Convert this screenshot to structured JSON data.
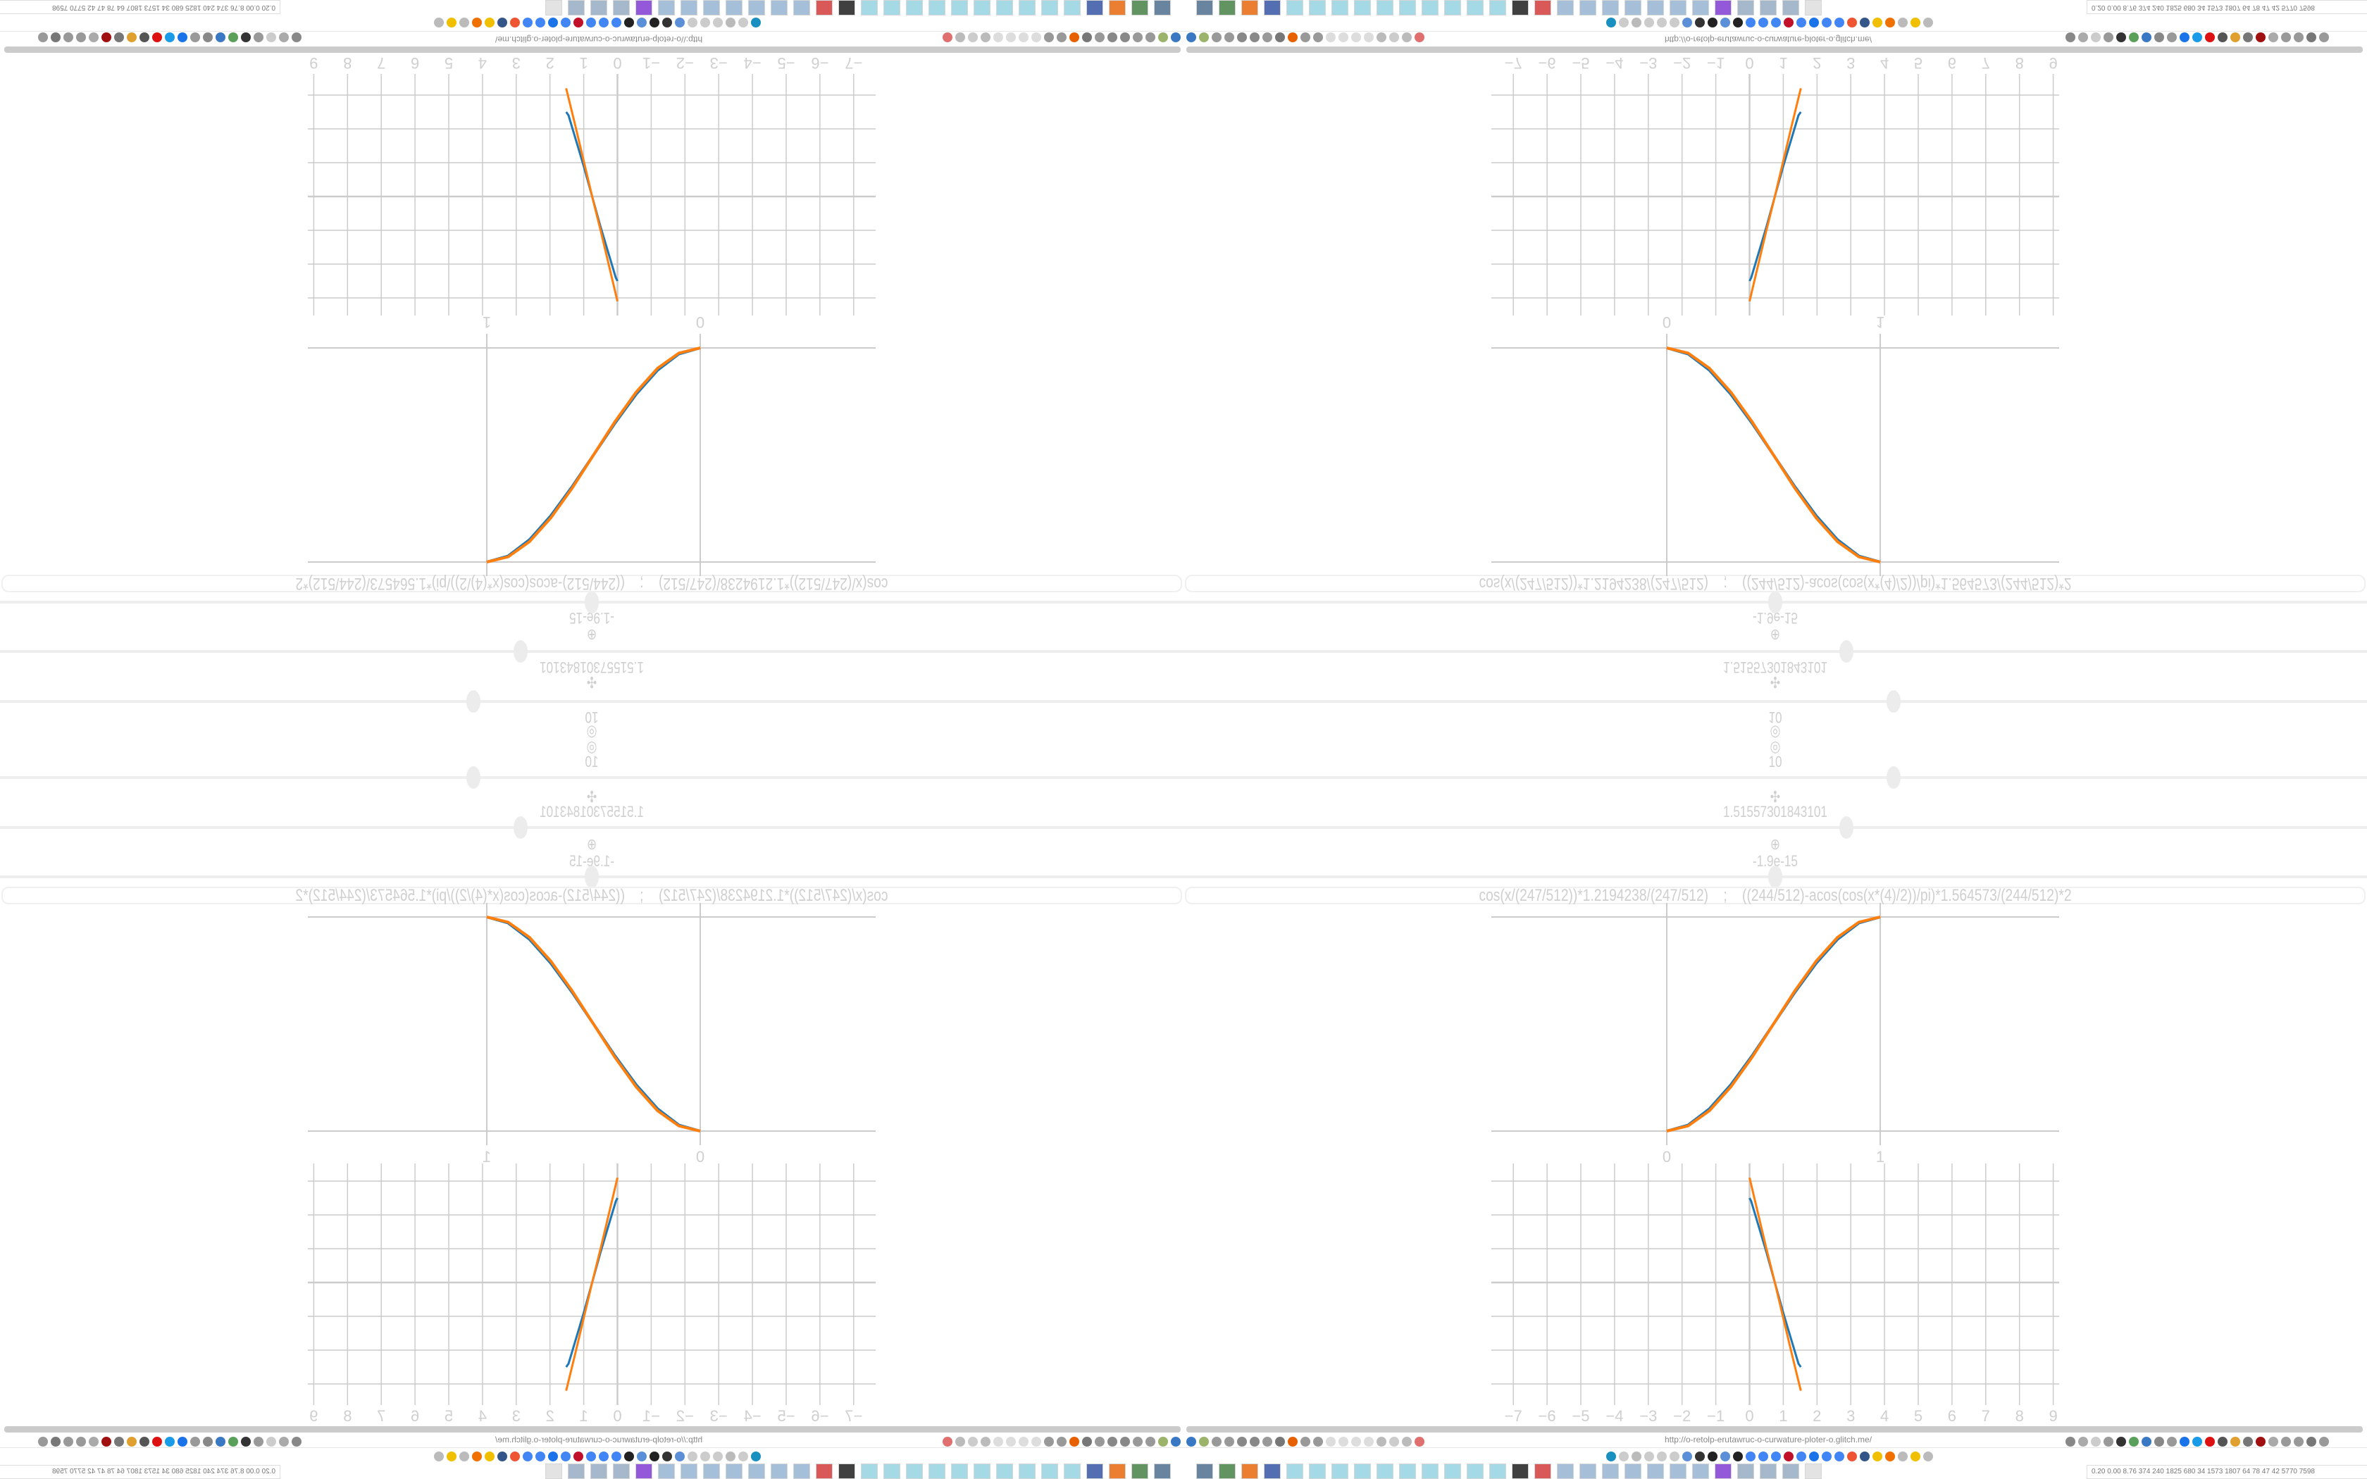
{
  "browser": {
    "url": "http://o-retolp-erutawruc-o-curwature-ploter-o.glitch.me/",
    "tray_stats": "0.20 0.00 8.76 374 240 1825 680 34 1573 1807 64 78 47 42 5770 7598",
    "toolbar_left_icons": [
      {
        "name": "filter-icon",
        "color": "#3b78c4"
      },
      {
        "name": "extension-icon",
        "color": "#9bb36b"
      },
      {
        "name": "globe-icon",
        "color": "#999999"
      },
      {
        "name": "globe-icon",
        "color": "#999999"
      },
      {
        "name": "refresh-icon",
        "color": "#888888"
      },
      {
        "name": "refresh-icon",
        "color": "#888888"
      },
      {
        "name": "globe-icon",
        "color": "#999999"
      },
      {
        "name": "wrench-icon",
        "color": "#777777"
      },
      {
        "name": "firefox-icon",
        "color": "#e66000"
      },
      {
        "name": "gear-icon",
        "color": "#999999"
      },
      {
        "name": "globe-icon",
        "color": "#999999"
      },
      {
        "name": "dot-icon",
        "color": "#dddddd"
      },
      {
        "name": "dot-icon",
        "color": "#dddddd"
      },
      {
        "name": "dot-icon",
        "color": "#dddddd"
      },
      {
        "name": "dot-icon",
        "color": "#dddddd"
      },
      {
        "name": "folder-icon",
        "color": "#bbbbbb"
      },
      {
        "name": "back-icon",
        "color": "#cccccc"
      },
      {
        "name": "shield-icon",
        "color": "#bbbbbb"
      },
      {
        "name": "blocked-icon",
        "color": "#e07070"
      }
    ],
    "toolbar_right_icons": [
      {
        "name": "translate-icon",
        "color": "#888888"
      },
      {
        "name": "star-icon",
        "color": "#aaaaaa"
      },
      {
        "name": "forward-icon",
        "color": "#cccccc"
      },
      {
        "name": "reload-icon",
        "color": "#999999"
      },
      {
        "name": "download-icon",
        "color": "#333333"
      },
      {
        "name": "pen-icon",
        "color": "#5aa05a"
      },
      {
        "name": "extension-icon",
        "color": "#3b78c4"
      },
      {
        "name": "extension-icon",
        "color": "#888888"
      },
      {
        "name": "gear-icon",
        "color": "#999999"
      },
      {
        "name": "plus-icon",
        "color": "#1a73e8"
      },
      {
        "name": "extension-icon",
        "color": "#1a9be8"
      },
      {
        "name": "record-icon",
        "color": "#d11"
      },
      {
        "name": "trash-icon",
        "color": "#555555"
      },
      {
        "name": "extension-icon",
        "color": "#e0a030"
      },
      {
        "name": "extension-icon",
        "color": "#777777"
      },
      {
        "name": "extension-icon",
        "color": "#a01010"
      },
      {
        "name": "extension-icon",
        "color": "#aaaaaa"
      },
      {
        "name": "globe-icon",
        "color": "#999999"
      },
      {
        "name": "puzzle-icon",
        "color": "#999999"
      },
      {
        "name": "wrench-icon",
        "color": "#777777"
      },
      {
        "name": "gear-icon",
        "color": "#999999"
      }
    ],
    "bookmark_icons": [
      {
        "name": "bookmark-icon",
        "color": "#1a90c0"
      },
      {
        "name": "mute-icon",
        "color": "#cccccc"
      },
      {
        "name": "cc-icon",
        "color": "#bbbbbb"
      },
      {
        "name": "mute-icon",
        "color": "#cccccc"
      },
      {
        "name": "mute-icon",
        "color": "#cccccc"
      },
      {
        "name": "mute-icon",
        "color": "#cccccc"
      },
      {
        "name": "globe-icon",
        "color": "#5b8fd8"
      },
      {
        "name": "wikipedia-icon",
        "color": "#333333"
      },
      {
        "name": "bookmark-icon",
        "color": "#222222"
      },
      {
        "name": "globe-icon",
        "color": "#5b8fd8"
      },
      {
        "name": "museum-icon",
        "color": "#222222"
      },
      {
        "name": "translate-icon",
        "color": "#4285f4"
      },
      {
        "name": "google-icon",
        "color": "#4285f4"
      },
      {
        "name": "google-icon",
        "color": "#4285f4"
      },
      {
        "name": "bookmark-icon",
        "color": "#c0102a"
      },
      {
        "name": "google-icon",
        "color": "#4285f4"
      },
      {
        "name": "bookmark-icon",
        "color": "#1a73e8"
      },
      {
        "name": "google-icon",
        "color": "#4285f4"
      },
      {
        "name": "google-icon",
        "color": "#4285f4"
      },
      {
        "name": "yandex-icon",
        "color": "#e53"
      },
      {
        "name": "grid-icon",
        "color": "#335588"
      },
      {
        "name": "image-icon",
        "color": "#f0c000"
      },
      {
        "name": "sun-icon",
        "color": "#f07000"
      },
      {
        "name": "cc-icon",
        "color": "#bbbbbb"
      },
      {
        "name": "image-icon",
        "color": "#f0c000"
      },
      {
        "name": "hourglass-icon",
        "color": "#bbbbbb"
      }
    ],
    "taskbar_icons": [
      {
        "name": "app-icon",
        "color": "#446688"
      },
      {
        "name": "app-icon",
        "color": "#3a7a3a"
      },
      {
        "name": "firefox-icon",
        "color": "#e66000"
      },
      {
        "name": "save-icon",
        "color": "#2a4aa0"
      },
      {
        "name": "notepad-icon",
        "color": "#8fd0e0"
      },
      {
        "name": "notepad-icon",
        "color": "#8fd0e0"
      },
      {
        "name": "notepad-icon",
        "color": "#8fd0e0"
      },
      {
        "name": "notepad-icon",
        "color": "#8fd0e0"
      },
      {
        "name": "notepad-icon",
        "color": "#8fd0e0"
      },
      {
        "name": "notepad-icon",
        "color": "#8fd0e0"
      },
      {
        "name": "notepad-icon",
        "color": "#8fd0e0"
      },
      {
        "name": "notepad-icon",
        "color": "#8fd0e0"
      },
      {
        "name": "notepad-icon",
        "color": "#8fd0e0"
      },
      {
        "name": "notepad-icon",
        "color": "#8fd0e0"
      },
      {
        "name": "app-icon",
        "color": "#111111"
      },
      {
        "name": "app-icon",
        "color": "#d03030"
      },
      {
        "name": "calculator-icon",
        "color": "#8fb0d0"
      },
      {
        "name": "calculator-icon",
        "color": "#8fb0d0"
      },
      {
        "name": "calculator-icon",
        "color": "#8fb0d0"
      },
      {
        "name": "calculator-icon",
        "color": "#8fb0d0"
      },
      {
        "name": "calculator-icon",
        "color": "#8fb0d0"
      },
      {
        "name": "calculator-icon",
        "color": "#8fb0d0"
      },
      {
        "name": "calculator-icon",
        "color": "#8fb0d0"
      },
      {
        "name": "app-icon",
        "color": "#7a30d0"
      },
      {
        "name": "document-icon",
        "color": "#90a8c0"
      },
      {
        "name": "document-icon",
        "color": "#90a8c0"
      },
      {
        "name": "document-icon",
        "color": "#90a8c0"
      },
      {
        "name": "app-icon",
        "color": "#dddddd"
      }
    ]
  },
  "controls": {
    "top_value": "10",
    "top_slider_percent": 60,
    "mid_value": "1.51557301843101",
    "mid_slider_percent": 56,
    "low_value": "-1.9e-15",
    "low_slider_percent": 50,
    "formula": "cos(x/(247/512))*1.2194238/(247/512)    ;    ((244/512)-acos(cos(x*(4)/2))/pi)*1.564573/(244/512)*2"
  },
  "colors": {
    "series_blue": "#1f77b4",
    "series_orange": "#ff7f0e",
    "grid": "#cccccc",
    "text": "#cfcfcf"
  },
  "chart_data": [
    {
      "type": "line",
      "x_ticks": [
        "0",
        "1"
      ],
      "xlim": [
        -0.82,
        1.84
      ],
      "ylim": [
        -0.07,
        1.06
      ],
      "grid": true,
      "series": [
        {
          "color": "#1f77b4",
          "points": [
            [
              0,
              0
            ],
            [
              0.1,
              0.028
            ],
            [
              0.2,
              0.104
            ],
            [
              0.3,
              0.216
            ],
            [
              0.4,
              0.352
            ],
            [
              0.5,
              0.5
            ],
            [
              0.6,
              0.648
            ],
            [
              0.7,
              0.784
            ],
            [
              0.8,
              0.896
            ],
            [
              0.9,
              0.972
            ],
            [
              1,
              1
            ]
          ]
        },
        {
          "color": "#ff7f0e",
          "points": [
            [
              0,
              0
            ],
            [
              0.1,
              0.024
            ],
            [
              0.2,
              0.095
            ],
            [
              0.3,
              0.206
            ],
            [
              0.4,
              0.345
            ],
            [
              0.5,
              0.5
            ],
            [
              0.6,
              0.655
            ],
            [
              0.7,
              0.794
            ],
            [
              0.8,
              0.905
            ],
            [
              0.9,
              0.976
            ],
            [
              1,
              1
            ]
          ]
        }
      ]
    },
    {
      "type": "line",
      "x_ticks": [
        "−7",
        "−6",
        "−5",
        "−4",
        "−3",
        "−2",
        "−1",
        "0",
        "1",
        "2",
        "3",
        "4",
        "5",
        "6",
        "7",
        "8",
        "9"
      ],
      "xlim": [
        -7.6,
        9.2
      ],
      "ylim": [
        -3.6,
        3.5
      ],
      "grid": true,
      "series": [
        {
          "color": "#1f77b4",
          "points": [
            [
              0,
              2.5
            ],
            [
              0.05,
              2.4
            ],
            [
              0.2,
              1.9
            ],
            [
              0.5,
              0.9
            ],
            [
              0.75,
              0
            ],
            [
              1.0,
              -0.9
            ],
            [
              1.3,
              -1.9
            ],
            [
              1.45,
              -2.4
            ],
            [
              1.52,
              -2.5
            ]
          ]
        },
        {
          "color": "#ff7f0e",
          "points": [
            [
              0,
              3.1
            ],
            [
              0.25,
              2.05
            ],
            [
              0.5,
              1.0
            ],
            [
              0.75,
              0
            ],
            [
              1.0,
              -1.05
            ],
            [
              1.25,
              -2.1
            ],
            [
              1.52,
              -3.2
            ]
          ]
        }
      ]
    }
  ]
}
